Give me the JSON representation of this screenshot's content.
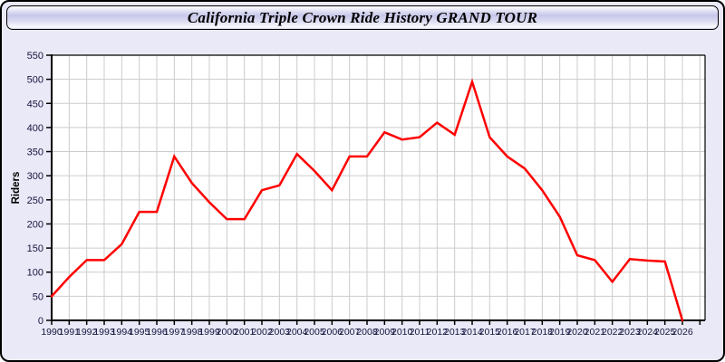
{
  "title": "California Triple Crown Ride History GRAND TOUR",
  "colors": {
    "frame_background": "#e9e9f7",
    "titlebar_top": "#ffffff",
    "titlebar_mid": "#c7c7ea",
    "frame_border": "#000000",
    "plot_background": "#ffffff",
    "gridline": "#cccccc",
    "axis": "#000000",
    "tick_label": "#15153f",
    "line": "#ff0000"
  },
  "chart_data": {
    "type": "line",
    "title": "California Triple Crown Ride History GRAND TOUR",
    "xlabel": "",
    "ylabel": "Riders",
    "ylim": [
      0,
      550
    ],
    "ytick_step": 50,
    "grid": true,
    "legend_position": "none",
    "line_color": "#ff0000",
    "categories": [
      "1990",
      "1991",
      "1992",
      "1993",
      "1994",
      "1995",
      "1996",
      "1997",
      "1998",
      "1999",
      "2000",
      "2001",
      "2002",
      "2003",
      "2004",
      "2005",
      "2006",
      "2007",
      "2008",
      "2009",
      "2010",
      "2011",
      "2012",
      "2013",
      "2014",
      "2015",
      "2016",
      "2017",
      "2018",
      "2019",
      "2020",
      "2021",
      "2022",
      "2023",
      "2024",
      "2025",
      "2026"
    ],
    "values": [
      50,
      90,
      125,
      125,
      158,
      225,
      225,
      340,
      285,
      245,
      210,
      210,
      270,
      280,
      345,
      310,
      270,
      340,
      340,
      390,
      375,
      380,
      410,
      385,
      495,
      380,
      340,
      315,
      270,
      215,
      135,
      125,
      80,
      127,
      124,
      122,
      0
    ]
  }
}
